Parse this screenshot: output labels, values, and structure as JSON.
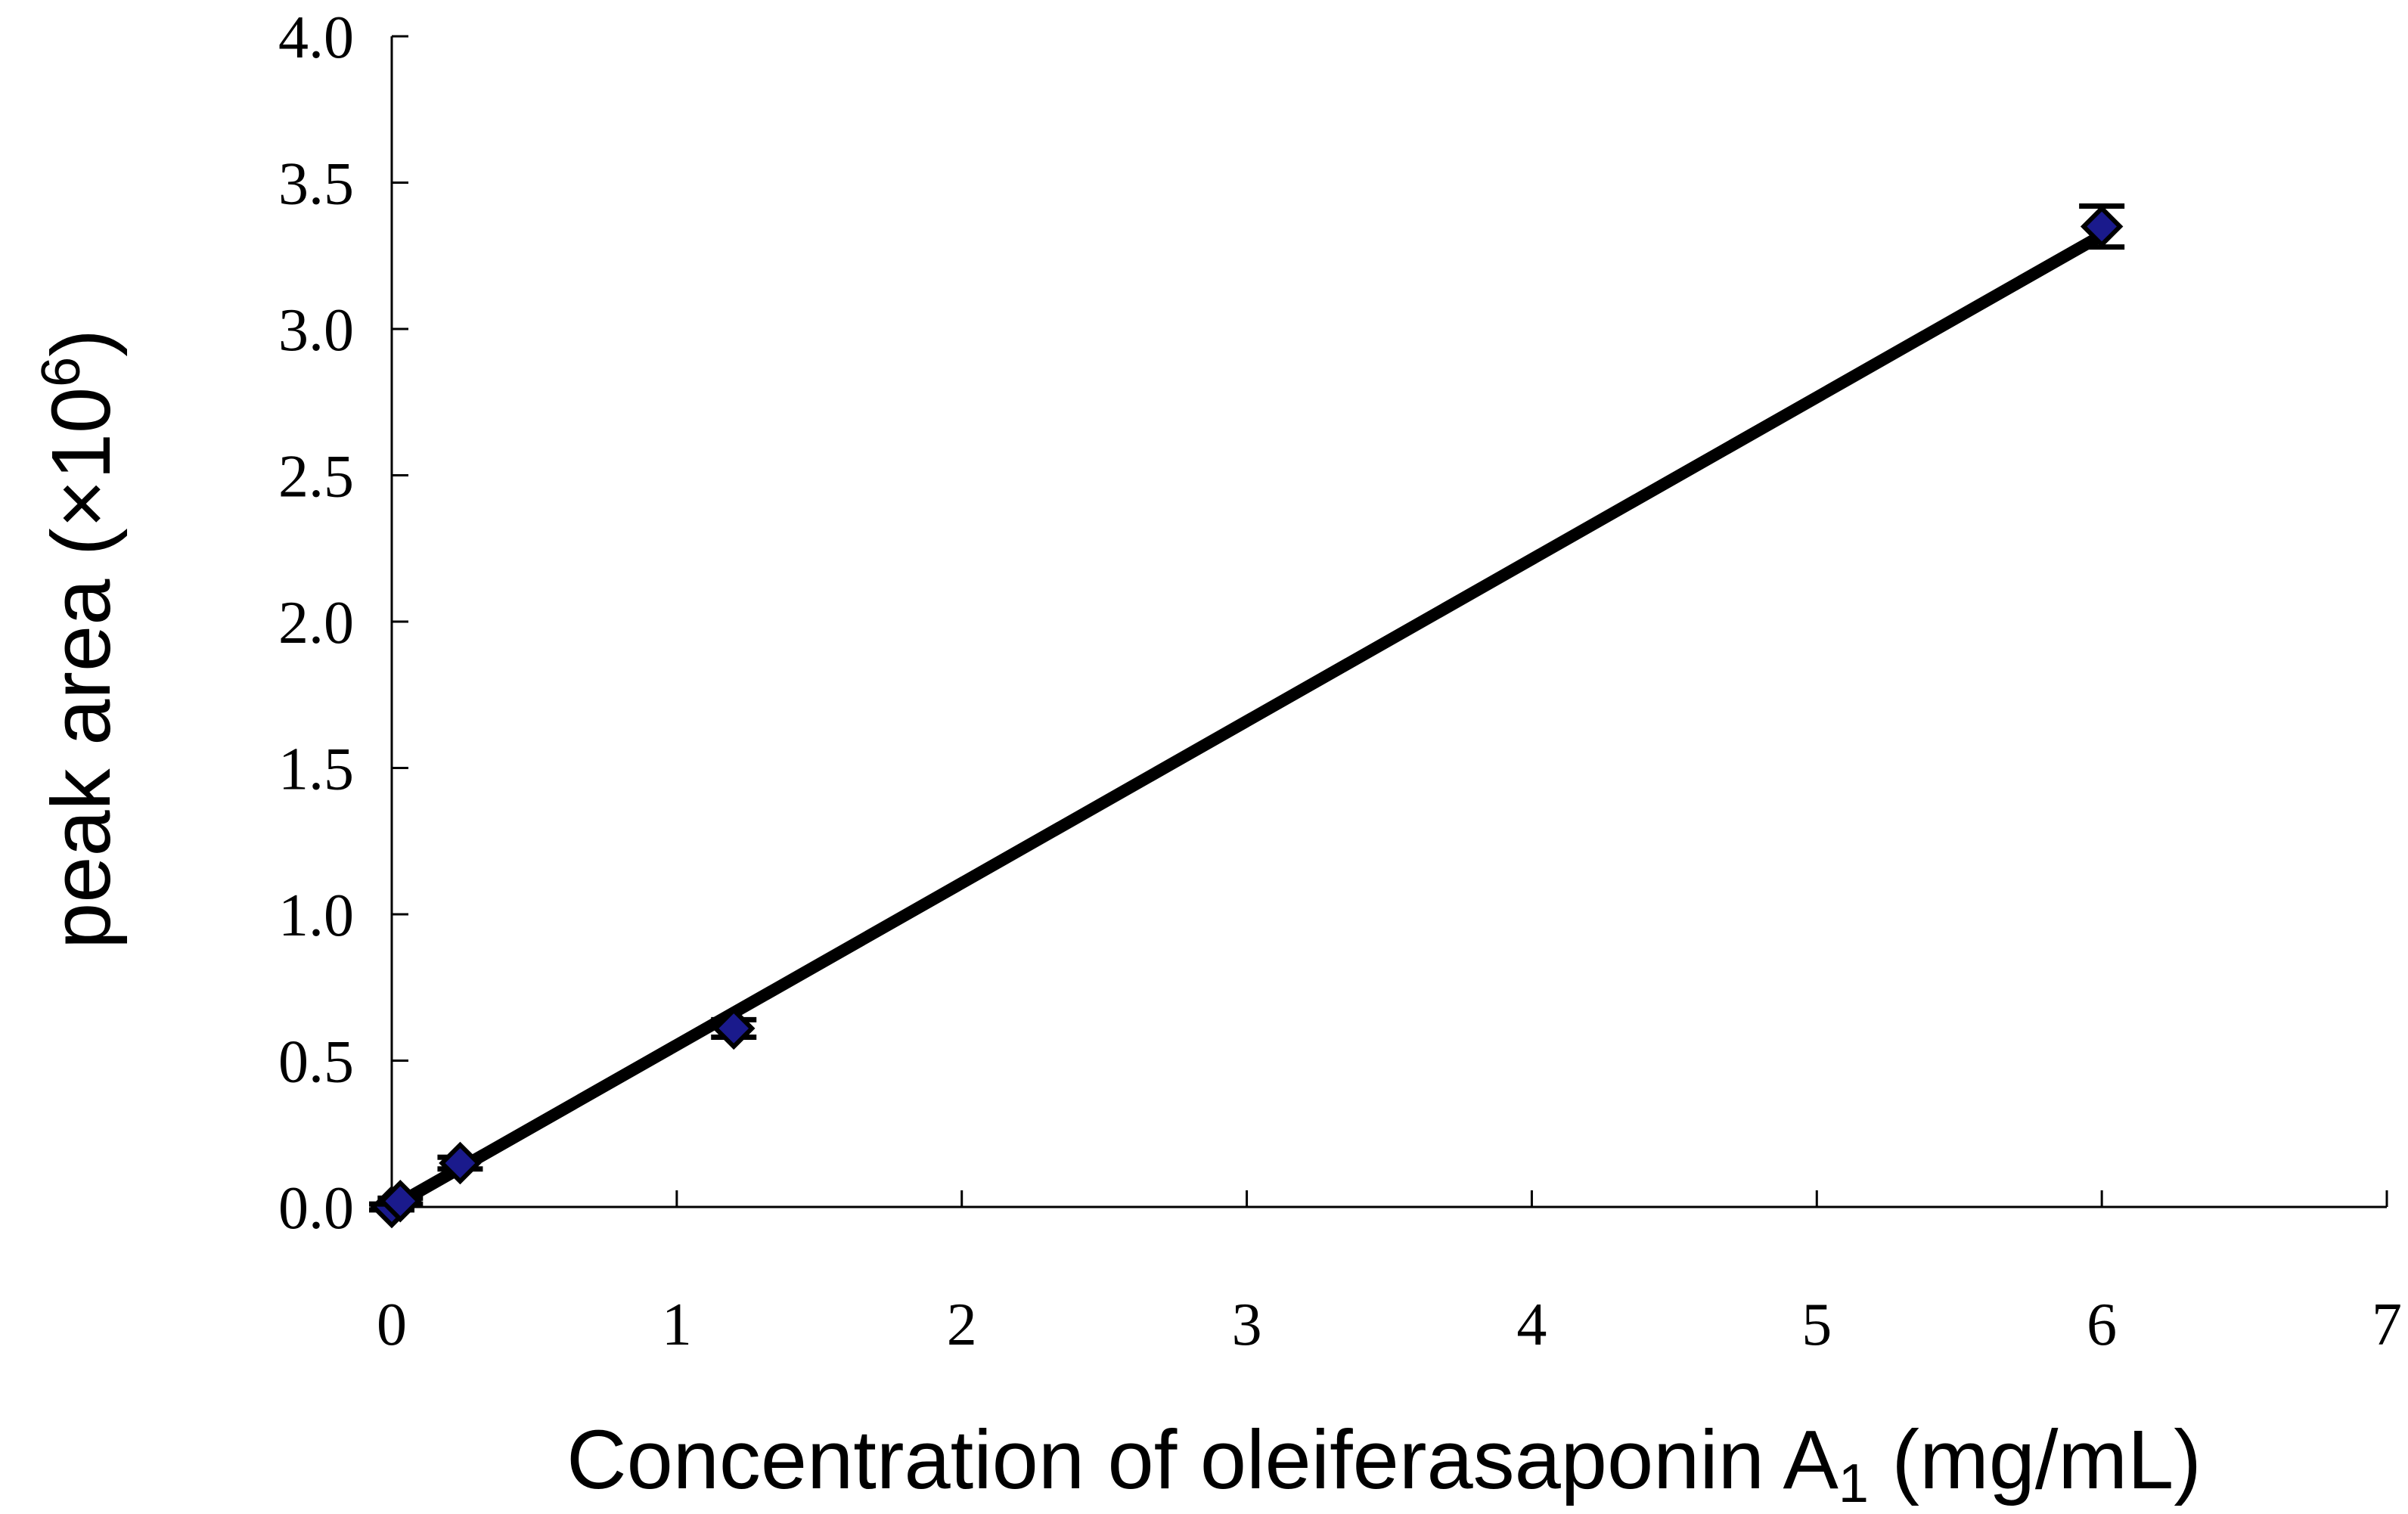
{
  "chart_data": {
    "type": "scatter",
    "title": "",
    "xlabel": {
      "main": "Concentration of oleiferasaponin A",
      "subscript": "1",
      "suffix": " (mg/mL)"
    },
    "ylabel": {
      "main": "peak area (×10",
      "superscript": "6",
      "suffix": ")"
    },
    "xlim": [
      0,
      7
    ],
    "ylim": [
      0,
      4.0
    ],
    "x_ticks": [
      "0",
      "1",
      "2",
      "3",
      "4",
      "5",
      "6",
      "7"
    ],
    "y_ticks": [
      "0.0",
      "0.5",
      "1.0",
      "1.5",
      "2.0",
      "2.5",
      "3.0",
      "3.5",
      "4.0"
    ],
    "grid": false,
    "legend": "none",
    "series": [
      {
        "marker": "diamond",
        "color": "#1a1a8c",
        "points": [
          {
            "x": 0.0,
            "y": 0.0,
            "err": 0.01
          },
          {
            "x": 0.03,
            "y": 0.02,
            "err": 0.01
          },
          {
            "x": 0.24,
            "y": 0.15,
            "err": 0.02
          },
          {
            "x": 1.2,
            "y": 0.61,
            "err": 0.03
          },
          {
            "x": 6.0,
            "y": 3.35,
            "err": 0.07
          }
        ]
      }
    ],
    "fit_line": {
      "x": [
        0,
        6.0
      ],
      "y": [
        0.0,
        3.32
      ],
      "color": "#000000"
    }
  }
}
